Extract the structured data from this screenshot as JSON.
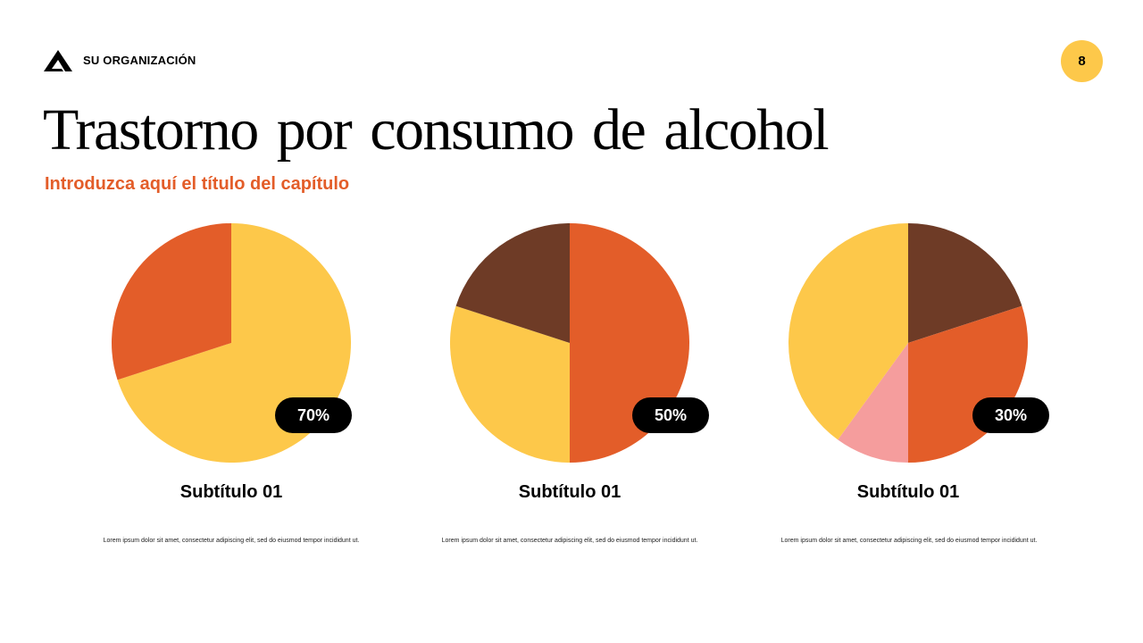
{
  "header": {
    "organization": "SU ORGANIZACIÓN",
    "page_number": "8"
  },
  "title": "Trastorno por consumo de alcohol",
  "chapter_subtitle": "Introduzca aquí el título del capítulo",
  "colors": {
    "yellow": "#FDC84A",
    "orange": "#E35D29",
    "brown": "#6E3B26",
    "pink": "#F59D9D"
  },
  "chart_data": [
    {
      "type": "pie",
      "badge": "70%",
      "subtitle": "Subtítulo 01",
      "description": "Lorem ipsum dolor sit amet, consectetur adipiscing elit, sed do eiusmod tempor incididunt ut.",
      "slices": [
        {
          "value": 70,
          "color": "#FDC84A"
        },
        {
          "value": 30,
          "color": "#E35D29"
        }
      ]
    },
    {
      "type": "pie",
      "badge": "50%",
      "subtitle": "Subtítulo 01",
      "description": "Lorem ipsum dolor sit amet, consectetur adipiscing elit, sed do eiusmod tempor incididunt ut.",
      "slices": [
        {
          "value": 50,
          "color": "#E35D29"
        },
        {
          "value": 30,
          "color": "#FDC84A"
        },
        {
          "value": 20,
          "color": "#6E3B26"
        }
      ]
    },
    {
      "type": "pie",
      "badge": "30%",
      "subtitle": "Subtítulo 01",
      "description": "Lorem ipsum dolor sit amet, consectetur adipiscing elit, sed do eiusmod tempor incididunt ut.",
      "slices": [
        {
          "value": 20,
          "color": "#6E3B26"
        },
        {
          "value": 30,
          "color": "#E35D29"
        },
        {
          "value": 10,
          "color": "#F59D9D"
        },
        {
          "value": 40,
          "color": "#FDC84A"
        }
      ]
    }
  ]
}
